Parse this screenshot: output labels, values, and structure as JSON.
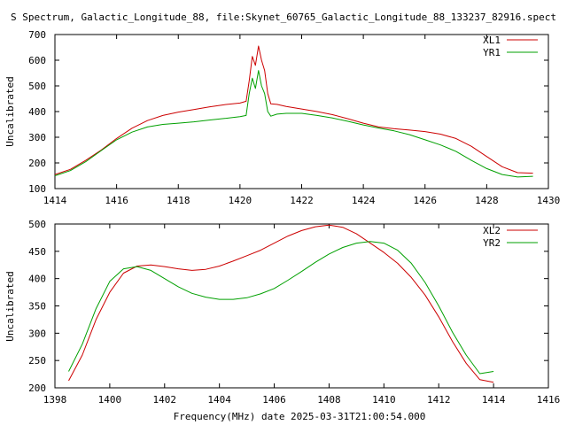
{
  "chart_data": [
    {
      "type": "line",
      "title": "S Spectrum, Galactic_Longitude_88, file:Skynet_60765_Galactic_Longitude_88_133237_82916.spect",
      "xlabel": "",
      "ylabel": "Uncalibrated",
      "xlim": [
        1414,
        1430
      ],
      "ylim": [
        100,
        700
      ],
      "xticks": [
        1414,
        1416,
        1418,
        1420,
        1422,
        1424,
        1426,
        1428,
        1430
      ],
      "yticks": [
        100,
        200,
        300,
        400,
        500,
        600,
        700
      ],
      "legend": "top-right",
      "grid": false,
      "series": [
        {
          "name": "XL1",
          "color": "#cc0000",
          "x": [
            1414.0,
            1414.5,
            1415.0,
            1415.5,
            1416.0,
            1416.5,
            1417.0,
            1417.5,
            1418.0,
            1418.5,
            1419.0,
            1419.5,
            1420.0,
            1420.2,
            1420.3,
            1420.4,
            1420.5,
            1420.6,
            1420.7,
            1420.8,
            1420.9,
            1421.0,
            1421.2,
            1421.5,
            1422.0,
            1422.5,
            1423.0,
            1423.5,
            1424.0,
            1424.5,
            1425.0,
            1425.5,
            1426.0,
            1426.5,
            1427.0,
            1427.5,
            1428.0,
            1428.5,
            1429.0,
            1429.5
          ],
          "values": [
            155,
            175,
            210,
            250,
            295,
            335,
            365,
            385,
            398,
            408,
            418,
            427,
            433,
            440,
            520,
            615,
            580,
            655,
            600,
            560,
            470,
            430,
            428,
            420,
            410,
            400,
            388,
            372,
            355,
            340,
            333,
            328,
            322,
            312,
            295,
            265,
            225,
            185,
            162,
            160
          ]
        },
        {
          "name": "YR1",
          "color": "#00a000",
          "x": [
            1414.0,
            1414.5,
            1415.0,
            1415.5,
            1416.0,
            1416.5,
            1417.0,
            1417.5,
            1418.0,
            1418.5,
            1419.0,
            1419.5,
            1420.0,
            1420.2,
            1420.3,
            1420.4,
            1420.5,
            1420.6,
            1420.7,
            1420.8,
            1420.9,
            1421.0,
            1421.2,
            1421.5,
            1422.0,
            1422.5,
            1423.0,
            1423.5,
            1424.0,
            1424.5,
            1425.0,
            1425.5,
            1426.0,
            1426.5,
            1427.0,
            1427.5,
            1428.0,
            1428.5,
            1429.0,
            1429.5
          ],
          "values": [
            150,
            170,
            205,
            248,
            290,
            320,
            340,
            350,
            355,
            360,
            367,
            373,
            380,
            385,
            470,
            530,
            490,
            560,
            500,
            470,
            400,
            382,
            390,
            393,
            393,
            385,
            375,
            362,
            348,
            336,
            325,
            310,
            290,
            270,
            245,
            210,
            178,
            155,
            145,
            148
          ]
        }
      ]
    },
    {
      "type": "line",
      "title": "",
      "xlabel": "Frequency(MHz) date 2025-03-31T21:00:54.000",
      "ylabel": "Uncalibrated",
      "xlim": [
        1398,
        1416
      ],
      "ylim": [
        200,
        500
      ],
      "xticks": [
        1398,
        1400,
        1402,
        1404,
        1406,
        1408,
        1410,
        1412,
        1414,
        1416
      ],
      "yticks": [
        200,
        250,
        300,
        350,
        400,
        450,
        500
      ],
      "legend": "top-right",
      "grid": false,
      "series": [
        {
          "name": "XL2",
          "color": "#cc0000",
          "x": [
            1398.5,
            1399.0,
            1399.5,
            1400.0,
            1400.5,
            1401.0,
            1401.5,
            1402.0,
            1402.5,
            1403.0,
            1403.5,
            1404.0,
            1404.5,
            1405.0,
            1405.5,
            1406.0,
            1406.5,
            1407.0,
            1407.5,
            1408.0,
            1408.5,
            1409.0,
            1409.5,
            1410.0,
            1410.5,
            1411.0,
            1411.5,
            1412.0,
            1412.5,
            1413.0,
            1413.5,
            1414.0
          ],
          "values": [
            213,
            260,
            325,
            375,
            410,
            423,
            425,
            422,
            418,
            415,
            417,
            423,
            432,
            442,
            452,
            465,
            478,
            488,
            495,
            498,
            494,
            482,
            465,
            448,
            428,
            402,
            370,
            330,
            285,
            245,
            215,
            210
          ]
        },
        {
          "name": "YR2",
          "color": "#00a000",
          "x": [
            1398.5,
            1399.0,
            1399.5,
            1400.0,
            1400.5,
            1401.0,
            1401.5,
            1402.0,
            1402.5,
            1403.0,
            1403.5,
            1404.0,
            1404.5,
            1405.0,
            1405.5,
            1406.0,
            1406.5,
            1407.0,
            1407.5,
            1408.0,
            1408.5,
            1409.0,
            1409.5,
            1410.0,
            1410.5,
            1411.0,
            1411.5,
            1412.0,
            1412.5,
            1413.0,
            1413.5,
            1414.0
          ],
          "values": [
            230,
            280,
            345,
            395,
            418,
            422,
            415,
            400,
            385,
            373,
            366,
            362,
            362,
            365,
            372,
            382,
            397,
            413,
            430,
            445,
            457,
            465,
            468,
            465,
            452,
            428,
            393,
            350,
            302,
            260,
            226,
            230
          ]
        }
      ]
    }
  ]
}
